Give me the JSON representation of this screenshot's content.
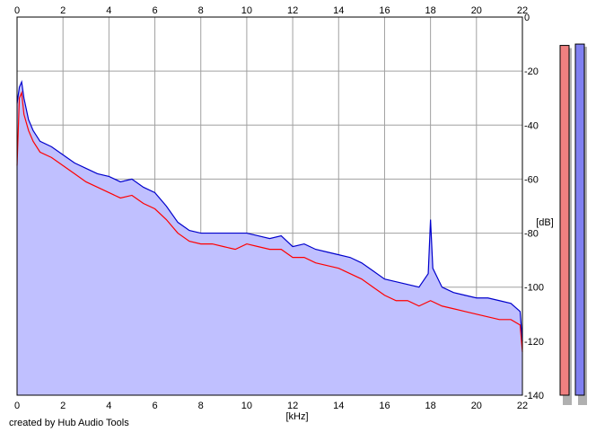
{
  "footer": "created by Hub Audio Tools",
  "chart_data": {
    "type": "area",
    "x_unit_label": "[kHz]",
    "y_unit_label": "[dB]",
    "xlim": [
      0,
      22
    ],
    "ylim": [
      -140,
      0
    ],
    "x_ticks": [
      "0",
      "2",
      "4",
      "6",
      "8",
      "10",
      "12",
      "14",
      "16",
      "18",
      "20",
      "22"
    ],
    "y_ticks": [
      "0",
      "-20",
      "-40",
      "-60",
      "-80",
      "-100",
      "-120",
      "-140"
    ],
    "grid": true,
    "legend": "none",
    "colors": {
      "channel_1": "#ff0000",
      "channel_2": "#0000cc",
      "fill": "#c0c0ff",
      "meter_1": "#f08080",
      "meter_2": "#8080f0",
      "grid": "#a0a0a0"
    },
    "series": [
      {
        "color": "#0000cc",
        "x": [
          0,
          0.1,
          0.2,
          0.3,
          0.5,
          0.7,
          1,
          1.5,
          2,
          2.5,
          3,
          3.5,
          4,
          4.5,
          5,
          5.5,
          6,
          6.5,
          7,
          7.5,
          8,
          8.5,
          9,
          9.5,
          10,
          10.5,
          11,
          11.5,
          12,
          12.5,
          13,
          13.5,
          14,
          14.5,
          15,
          15.5,
          16,
          16.5,
          17,
          17.5,
          17.9,
          18,
          18.1,
          18.5,
          19,
          19.5,
          20,
          20.5,
          21,
          21.5,
          21.9,
          22
        ],
        "y": [
          -32,
          -26,
          -24,
          -30,
          -38,
          -42,
          -46,
          -48,
          -51,
          -54,
          -56,
          -58,
          -59,
          -61,
          -60,
          -63,
          -65,
          -70,
          -76,
          -79,
          -80,
          -80,
          -80,
          -80,
          -80,
          -81,
          -82,
          -81,
          -85,
          -84,
          -86,
          -87,
          -88,
          -89,
          -91,
          -94,
          -97,
          -98,
          -99,
          -100,
          -95,
          -75,
          -93,
          -100,
          -102,
          -103,
          -104,
          -104,
          -105,
          -106,
          -109,
          -120
        ]
      },
      {
        "color": "#ff0000",
        "x": [
          0,
          0.1,
          0.2,
          0.3,
          0.5,
          0.7,
          1,
          1.5,
          2,
          2.5,
          3,
          3.5,
          4,
          4.5,
          5,
          5.5,
          6,
          6.5,
          7,
          7.5,
          8,
          8.5,
          9,
          9.5,
          10,
          10.5,
          11,
          11.5,
          12,
          12.5,
          13,
          13.5,
          14,
          14.5,
          15,
          15.5,
          16,
          16.5,
          17,
          17.5,
          18,
          18.5,
          19,
          19.5,
          20,
          20.5,
          21,
          21.5,
          21.9,
          22
        ],
        "y": [
          -55,
          -30,
          -28,
          -36,
          -42,
          -46,
          -50,
          -52,
          -55,
          -58,
          -61,
          -63,
          -65,
          -67,
          -66,
          -69,
          -71,
          -75,
          -80,
          -83,
          -84,
          -84,
          -85,
          -86,
          -84,
          -85,
          -86,
          -86,
          -89,
          -89,
          -91,
          -92,
          -93,
          -95,
          -97,
          -100,
          -103,
          -105,
          -105,
          -107,
          -105,
          -107,
          -108,
          -109,
          -110,
          -111,
          -112,
          -112,
          -114,
          -124
        ]
      }
    ],
    "level_meters": [
      {
        "color": "#f08080",
        "level_db": -10.5
      },
      {
        "color": "#8080f0",
        "level_db": -10
      }
    ]
  }
}
